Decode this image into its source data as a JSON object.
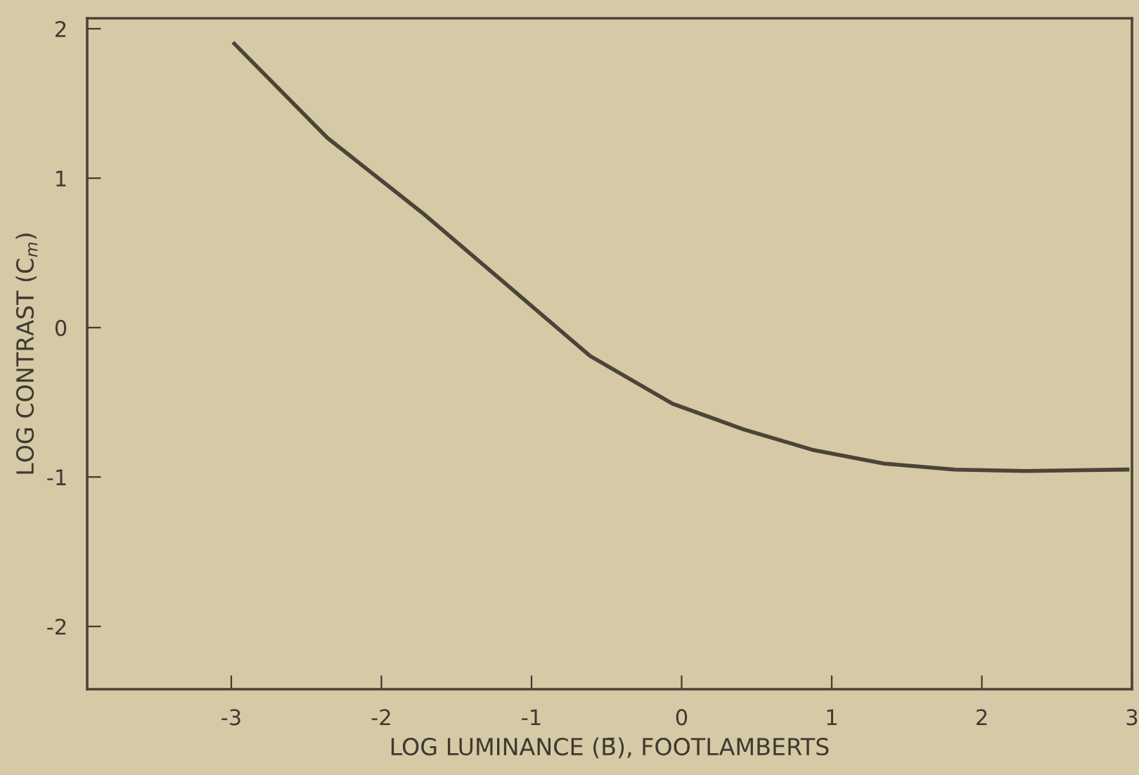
{
  "chart_data": {
    "type": "line",
    "xlabel": "LOG LUMINANCE (B̄), FOOTLAMBERTS",
    "ylabel": "LOG CONTRAST (C$_{m}$)",
    "xlim": [
      -3.96,
      3
    ],
    "ylim": [
      -2.42,
      2.07
    ],
    "xticks": [
      -3,
      -2,
      -1,
      0,
      1,
      2,
      3
    ],
    "yticks": [
      -2,
      -1,
      0,
      1,
      2
    ],
    "grid": false,
    "legend": false,
    "marker": "none",
    "line_style": "solid",
    "series": [
      {
        "color": "#4a4538",
        "x": [
          -2.98,
          -2.36,
          -1.73,
          -1.11,
          -0.61,
          -0.06,
          0.41,
          0.88,
          1.35,
          1.82,
          2.29,
          2.97
        ],
        "values": [
          1.9,
          1.27,
          0.77,
          0.24,
          -0.19,
          -0.51,
          -0.68,
          -0.82,
          -0.91,
          -0.95,
          -0.96,
          -0.95
        ]
      }
    ]
  }
}
